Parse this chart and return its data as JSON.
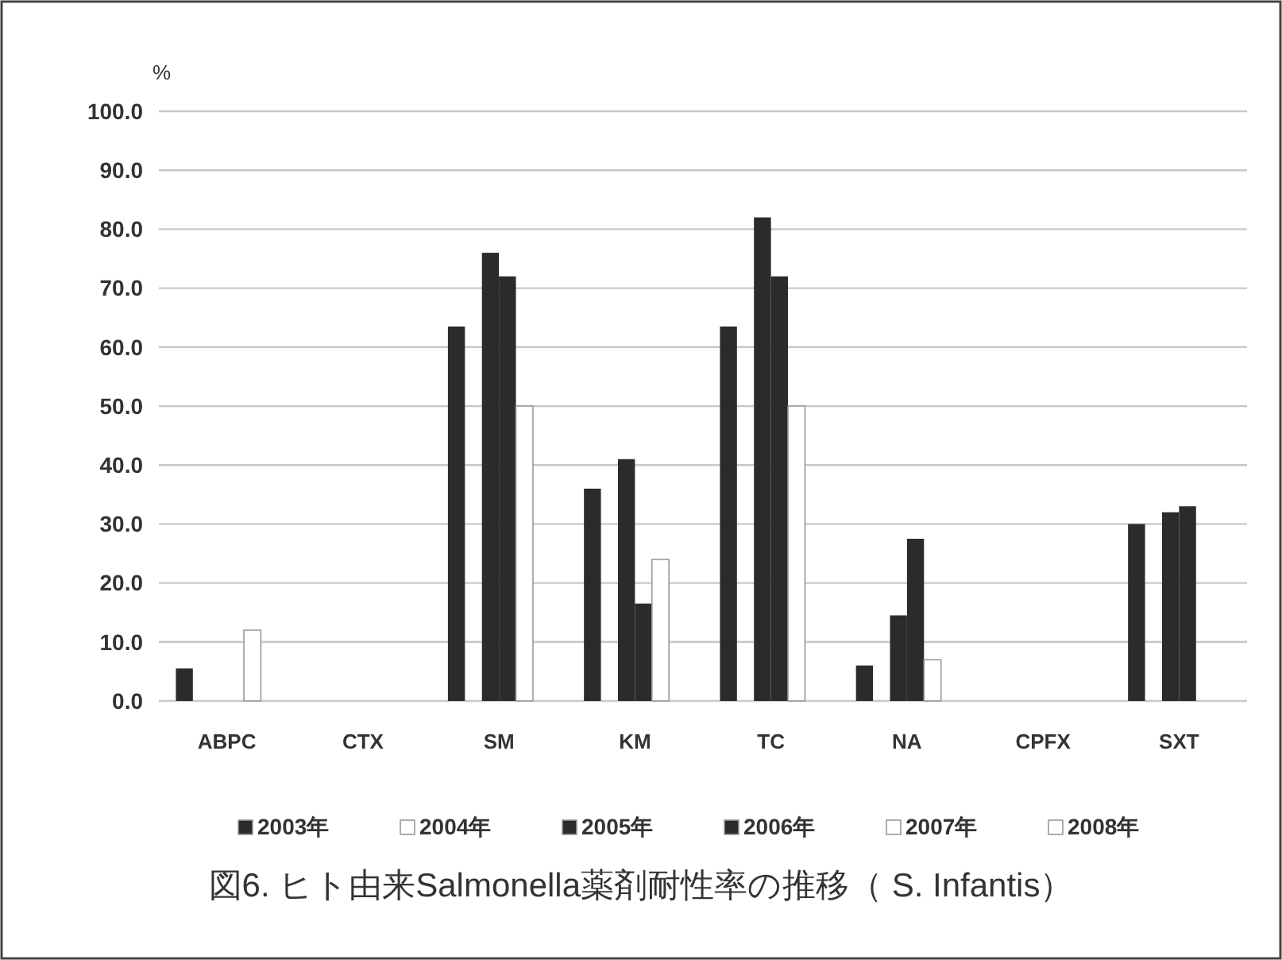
{
  "chart_data": {
    "type": "bar",
    "title": "図6. ヒト由来Salmonella薬剤耐性率の推移（ S. Infantis）",
    "ylabel": "%",
    "categories": [
      "ABPC",
      "CTX",
      "SM",
      "KM",
      "TC",
      "NA",
      "CPFX",
      "SXT"
    ],
    "series": [
      {
        "name": "2003年",
        "color": "#2b2b2b",
        "values": [
          5.5,
          0,
          63.5,
          36,
          63.5,
          6,
          0,
          30
        ]
      },
      {
        "name": "2004年",
        "color": "#ffffff",
        "values": [
          0,
          0,
          0,
          0,
          0,
          0,
          0,
          0
        ]
      },
      {
        "name": "2005年",
        "color": "#2b2b2b",
        "values": [
          0,
          0,
          76,
          41,
          82,
          14.5,
          0,
          32
        ]
      },
      {
        "name": "2006年",
        "color": "#2b2b2b",
        "values": [
          0,
          0,
          72,
          16.5,
          72,
          27.5,
          0,
          33
        ]
      },
      {
        "name": "2007年",
        "color": "#ffffff",
        "values": [
          12,
          0,
          50,
          24,
          50,
          7,
          0,
          0
        ]
      },
      {
        "name": "2008年",
        "color": "#ffffff",
        "values": [
          0,
          0,
          0,
          0,
          0,
          0,
          0,
          0
        ]
      }
    ],
    "ylim": [
      0,
      100
    ],
    "yticks": [
      {
        "value": 0,
        "label": "0.0"
      },
      {
        "value": 10,
        "label": "10.0"
      },
      {
        "value": 20,
        "label": "20.0"
      },
      {
        "value": 30,
        "label": "30.0"
      },
      {
        "value": 40,
        "label": "40.0"
      },
      {
        "value": 50,
        "label": "50.0"
      },
      {
        "value": 60,
        "label": "60.0"
      },
      {
        "value": 70,
        "label": "70.0"
      },
      {
        "value": 80,
        "label": "80.0"
      },
      {
        "value": 90,
        "label": "90.0"
      },
      {
        "value": 100,
        "label": "100.0"
      }
    ],
    "grid": "y",
    "legend": "bottom"
  }
}
